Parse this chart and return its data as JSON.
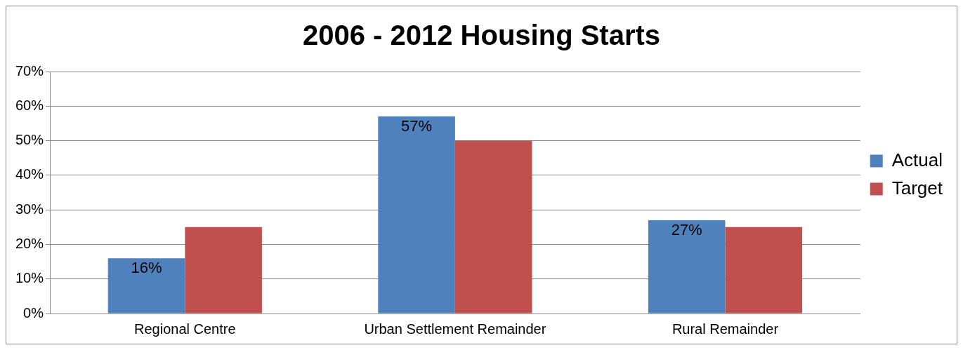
{
  "chart_data": {
    "type": "bar",
    "title": "2006 - 2012 Housing Starts",
    "categories": [
      "Regional Centre",
      "Urban Settlement Remainder",
      "Rural Remainder"
    ],
    "series": [
      {
        "name": "Actual",
        "color": "#4f81bd",
        "values": [
          16,
          57,
          27
        ],
        "value_labels": [
          "16%",
          "57%",
          "27%"
        ]
      },
      {
        "name": "Target",
        "color": "#c0504d",
        "values": [
          25,
          50,
          25
        ]
      }
    ],
    "ylim": [
      0,
      70
    ],
    "yticks": [
      {
        "value": 0,
        "label": "0%"
      },
      {
        "value": 10,
        "label": "10%"
      },
      {
        "value": 20,
        "label": "20%"
      },
      {
        "value": 30,
        "label": "30%"
      },
      {
        "value": 40,
        "label": "40%"
      },
      {
        "value": 50,
        "label": "50%"
      },
      {
        "value": 60,
        "label": "60%"
      },
      {
        "value": 70,
        "label": "70%"
      }
    ],
    "grid": "y",
    "legend": "right"
  }
}
